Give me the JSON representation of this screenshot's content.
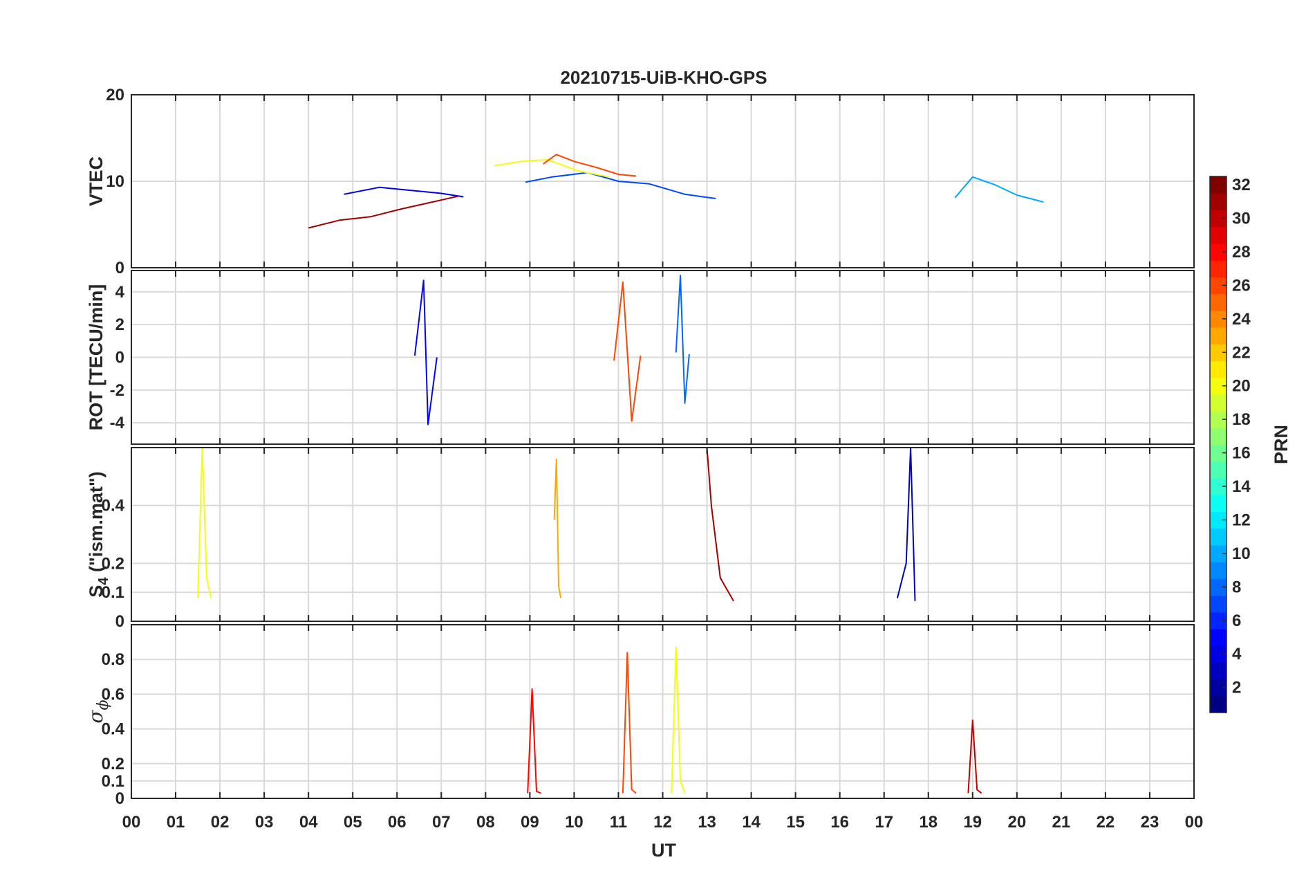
{
  "chart_data": {
    "type": "line",
    "title": "20210715-UiB-KHO-GPS",
    "xlabel": "UT",
    "x_ticks": [
      "00",
      "01",
      "02",
      "03",
      "04",
      "05",
      "06",
      "07",
      "08",
      "09",
      "10",
      "11",
      "12",
      "13",
      "14",
      "15",
      "16",
      "17",
      "18",
      "19",
      "20",
      "21",
      "22",
      "23",
      "00"
    ],
    "xlim": [
      0,
      24
    ],
    "colorbar": {
      "label": "PRN",
      "range": [
        1,
        32
      ],
      "ticks": [
        "2",
        "4",
        "6",
        "8",
        "10",
        "12",
        "14",
        "16",
        "18",
        "20",
        "22",
        "24",
        "26",
        "28",
        "30",
        "32"
      ],
      "colormap": "jet"
    },
    "panels": [
      {
        "ylabel": "VTEC",
        "ylim": [
          0,
          20
        ],
        "yticks": [
          "0",
          "10",
          "20"
        ],
        "series": [
          {
            "prn": 4,
            "x": [
              4.8,
              5.6,
              6.4,
              7.0,
              7.5
            ],
            "y": [
              8.5,
              9.3,
              8.9,
              8.6,
              8.2
            ]
          },
          {
            "prn": 7,
            "x": [
              8.9,
              9.5,
              10.3,
              11.0,
              11.7,
              12.5,
              13.2
            ],
            "y": [
              9.9,
              10.5,
              11.0,
              10.0,
              9.7,
              8.5,
              8.0
            ]
          },
          {
            "prn": 10,
            "x": [
              18.6,
              19.0,
              19.5,
              20.0,
              20.6
            ],
            "y": [
              8.1,
              10.5,
              9.6,
              8.4,
              7.6
            ]
          },
          {
            "prn": 20,
            "x": [
              8.2,
              8.8,
              9.4,
              10.1,
              10.8
            ],
            "y": [
              11.8,
              12.3,
              12.5,
              11.2,
              10.5
            ]
          },
          {
            "prn": 26,
            "x": [
              9.3,
              9.6,
              10.0,
              10.5,
              11.0,
              11.4
            ],
            "y": [
              12.0,
              13.1,
              12.3,
              11.6,
              10.8,
              10.6
            ]
          },
          {
            "prn": 31,
            "x": [
              4.0,
              4.7,
              5.4,
              6.1,
              6.8,
              7.4
            ],
            "y": [
              4.6,
              5.5,
              5.9,
              6.8,
              7.6,
              8.3
            ]
          }
        ]
      },
      {
        "ylabel": "ROT [TECU/min]",
        "ylim": [
          -5.3,
          5.3
        ],
        "yticks": [
          "-4",
          "-2",
          "0",
          "2",
          "4"
        ],
        "series": [
          {
            "prn": 8,
            "x": [
              12.3,
              12.4,
              12.5,
              12.6
            ],
            "y": [
              0.3,
              5.0,
              -2.8,
              0.2
            ]
          },
          {
            "prn": 26,
            "x": [
              10.9,
              11.1,
              11.3,
              11.5
            ],
            "y": [
              -0.2,
              4.6,
              -3.9,
              0.1
            ]
          },
          {
            "prn": 5,
            "x": [
              6.4,
              6.6,
              6.7,
              6.9
            ],
            "y": [
              0.1,
              4.7,
              -4.1,
              0.0
            ]
          }
        ]
      },
      {
        "ylabel": "S",
        "ylabel_subscript": "4",
        "ylabel_suffix": " (\"ism.mat\")",
        "ylim": [
          0,
          0.6
        ],
        "yticks": [
          "0",
          "0.1",
          "0.2",
          "0.4"
        ],
        "series": [
          {
            "prn": 20,
            "x": [
              1.5,
              1.6,
              1.7,
              1.8
            ],
            "y": [
              0.08,
              0.6,
              0.15,
              0.08
            ]
          },
          {
            "prn": 23,
            "x": [
              9.55,
              9.6,
              9.65,
              9.7
            ],
            "y": [
              0.35,
              0.56,
              0.12,
              0.08
            ]
          },
          {
            "prn": 31,
            "x": [
              13.0,
              13.1,
              13.3,
              13.6
            ],
            "y": [
              0.6,
              0.4,
              0.15,
              0.07
            ]
          },
          {
            "prn": 3,
            "x": [
              17.3,
              17.5,
              17.6,
              17.7
            ],
            "y": [
              0.08,
              0.2,
              0.6,
              0.07
            ]
          }
        ]
      },
      {
        "ylabel": "σ",
        "ylabel_subscript": "ϕ",
        "ylim": [
          0,
          1.0
        ],
        "yticks": [
          "0",
          "0.1",
          "0.2",
          "0.4",
          "0.6",
          "0.8"
        ],
        "series": [
          {
            "prn": 26,
            "x": [
              11.1,
              11.2,
              11.3,
              11.4
            ],
            "y": [
              0.03,
              0.84,
              0.05,
              0.03
            ]
          },
          {
            "prn": 20,
            "x": [
              12.2,
              12.3,
              12.4,
              12.5
            ],
            "y": [
              0.03,
              0.87,
              0.1,
              0.03
            ]
          },
          {
            "prn": 28,
            "x": [
              8.95,
              9.05,
              9.15,
              9.25
            ],
            "y": [
              0.03,
              0.63,
              0.04,
              0.03
            ]
          },
          {
            "prn": 30,
            "x": [
              18.9,
              19.0,
              19.1,
              19.2
            ],
            "y": [
              0.03,
              0.45,
              0.05,
              0.03
            ]
          }
        ]
      }
    ]
  }
}
